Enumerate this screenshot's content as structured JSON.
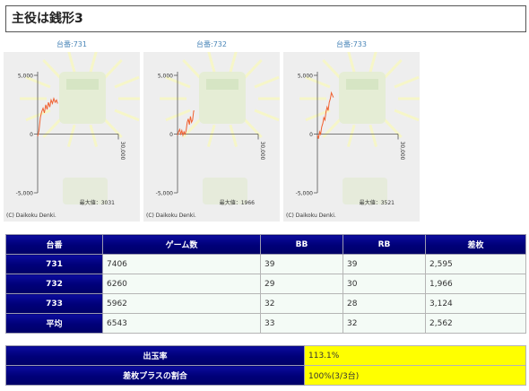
{
  "page": {
    "title": "主役は銭形3"
  },
  "graphs": [
    {
      "machine_label": "台番:731",
      "y_max_label": "5,000",
      "y_zero_label": "0",
      "y_min_label": "-5,000",
      "x_end_label": "30,000",
      "max_value_label": "最大値：3031",
      "copyright": "(C) Daikoku Denki.",
      "chart_data": {
        "type": "line",
        "title": "",
        "xlabel": "",
        "ylabel": "",
        "xlim": [
          0,
          30000
        ],
        "ylim": [
          -5000,
          5000
        ],
        "x": [
          0,
          500,
          1000,
          1500,
          2000,
          2500,
          3000,
          3500,
          4000,
          4500,
          5000,
          5500,
          6000,
          6500,
          7000,
          7406
        ],
        "y": [
          -200,
          300,
          1400,
          1900,
          2200,
          1800,
          2500,
          2100,
          2700,
          2300,
          2900,
          2600,
          3031,
          2700,
          2900,
          2595
        ]
      }
    },
    {
      "machine_label": "台番:732",
      "y_max_label": "5,000",
      "y_zero_label": "0",
      "y_min_label": "-5,000",
      "x_end_label": "30,000",
      "max_value_label": "最大値：1966",
      "copyright": "(C) Daikoku Denki.",
      "chart_data": {
        "type": "line",
        "title": "",
        "xlabel": "",
        "ylabel": "",
        "xlim": [
          0,
          30000
        ],
        "ylim": [
          -5000,
          5000
        ],
        "x": [
          0,
          400,
          800,
          1200,
          1600,
          2000,
          2400,
          2800,
          3200,
          3600,
          4000,
          4400,
          4800,
          5200,
          5600,
          6000,
          6260
        ],
        "y": [
          -100,
          200,
          400,
          0,
          300,
          -100,
          200,
          0,
          300,
          1000,
          1300,
          800,
          1500,
          1000,
          1200,
          1966,
          1966
        ]
      }
    },
    {
      "machine_label": "台番:733",
      "y_max_label": "5,000",
      "y_zero_label": "0",
      "y_min_label": "-5,000",
      "x_end_label": "30,000",
      "max_value_label": "最大値：3521",
      "copyright": "(C) Daikoku Denki.",
      "chart_data": {
        "type": "line",
        "title": "",
        "xlabel": "",
        "ylabel": "",
        "xlim": [
          0,
          30000
        ],
        "ylim": [
          -5000,
          5000
        ],
        "x": [
          0,
          400,
          800,
          1200,
          1600,
          2000,
          2400,
          2800,
          3200,
          3600,
          4000,
          4400,
          4800,
          5200,
          5600,
          5962
        ],
        "y": [
          -100,
          -400,
          200,
          0,
          600,
          900,
          1400,
          1200,
          1900,
          2300,
          2000,
          2700,
          3000,
          3521,
          3300,
          3124
        ]
      }
    }
  ],
  "table": {
    "headers": [
      "台番",
      "ゲーム数",
      "BB",
      "RB",
      "差枚"
    ],
    "rows": [
      {
        "label": "731",
        "cells": [
          "7406",
          "39",
          "39",
          "2,595"
        ]
      },
      {
        "label": "732",
        "cells": [
          "6260",
          "29",
          "30",
          "1,966"
        ]
      },
      {
        "label": "733",
        "cells": [
          "5962",
          "32",
          "28",
          "3,124"
        ]
      },
      {
        "label": "平均",
        "cells": [
          "6543",
          "33",
          "32",
          "2,562"
        ]
      }
    ]
  },
  "summary": {
    "rows": [
      {
        "label": "出玉率",
        "value": "113.1%"
      },
      {
        "label": "差枚プラスの割合",
        "value": "100%(3/3台)"
      }
    ]
  },
  "colors": {
    "header_navy": "#00007a",
    "line_orange": "#f06030",
    "highlight_yellow": "#ffff00",
    "machine_label_blue": "#4a86b8"
  }
}
